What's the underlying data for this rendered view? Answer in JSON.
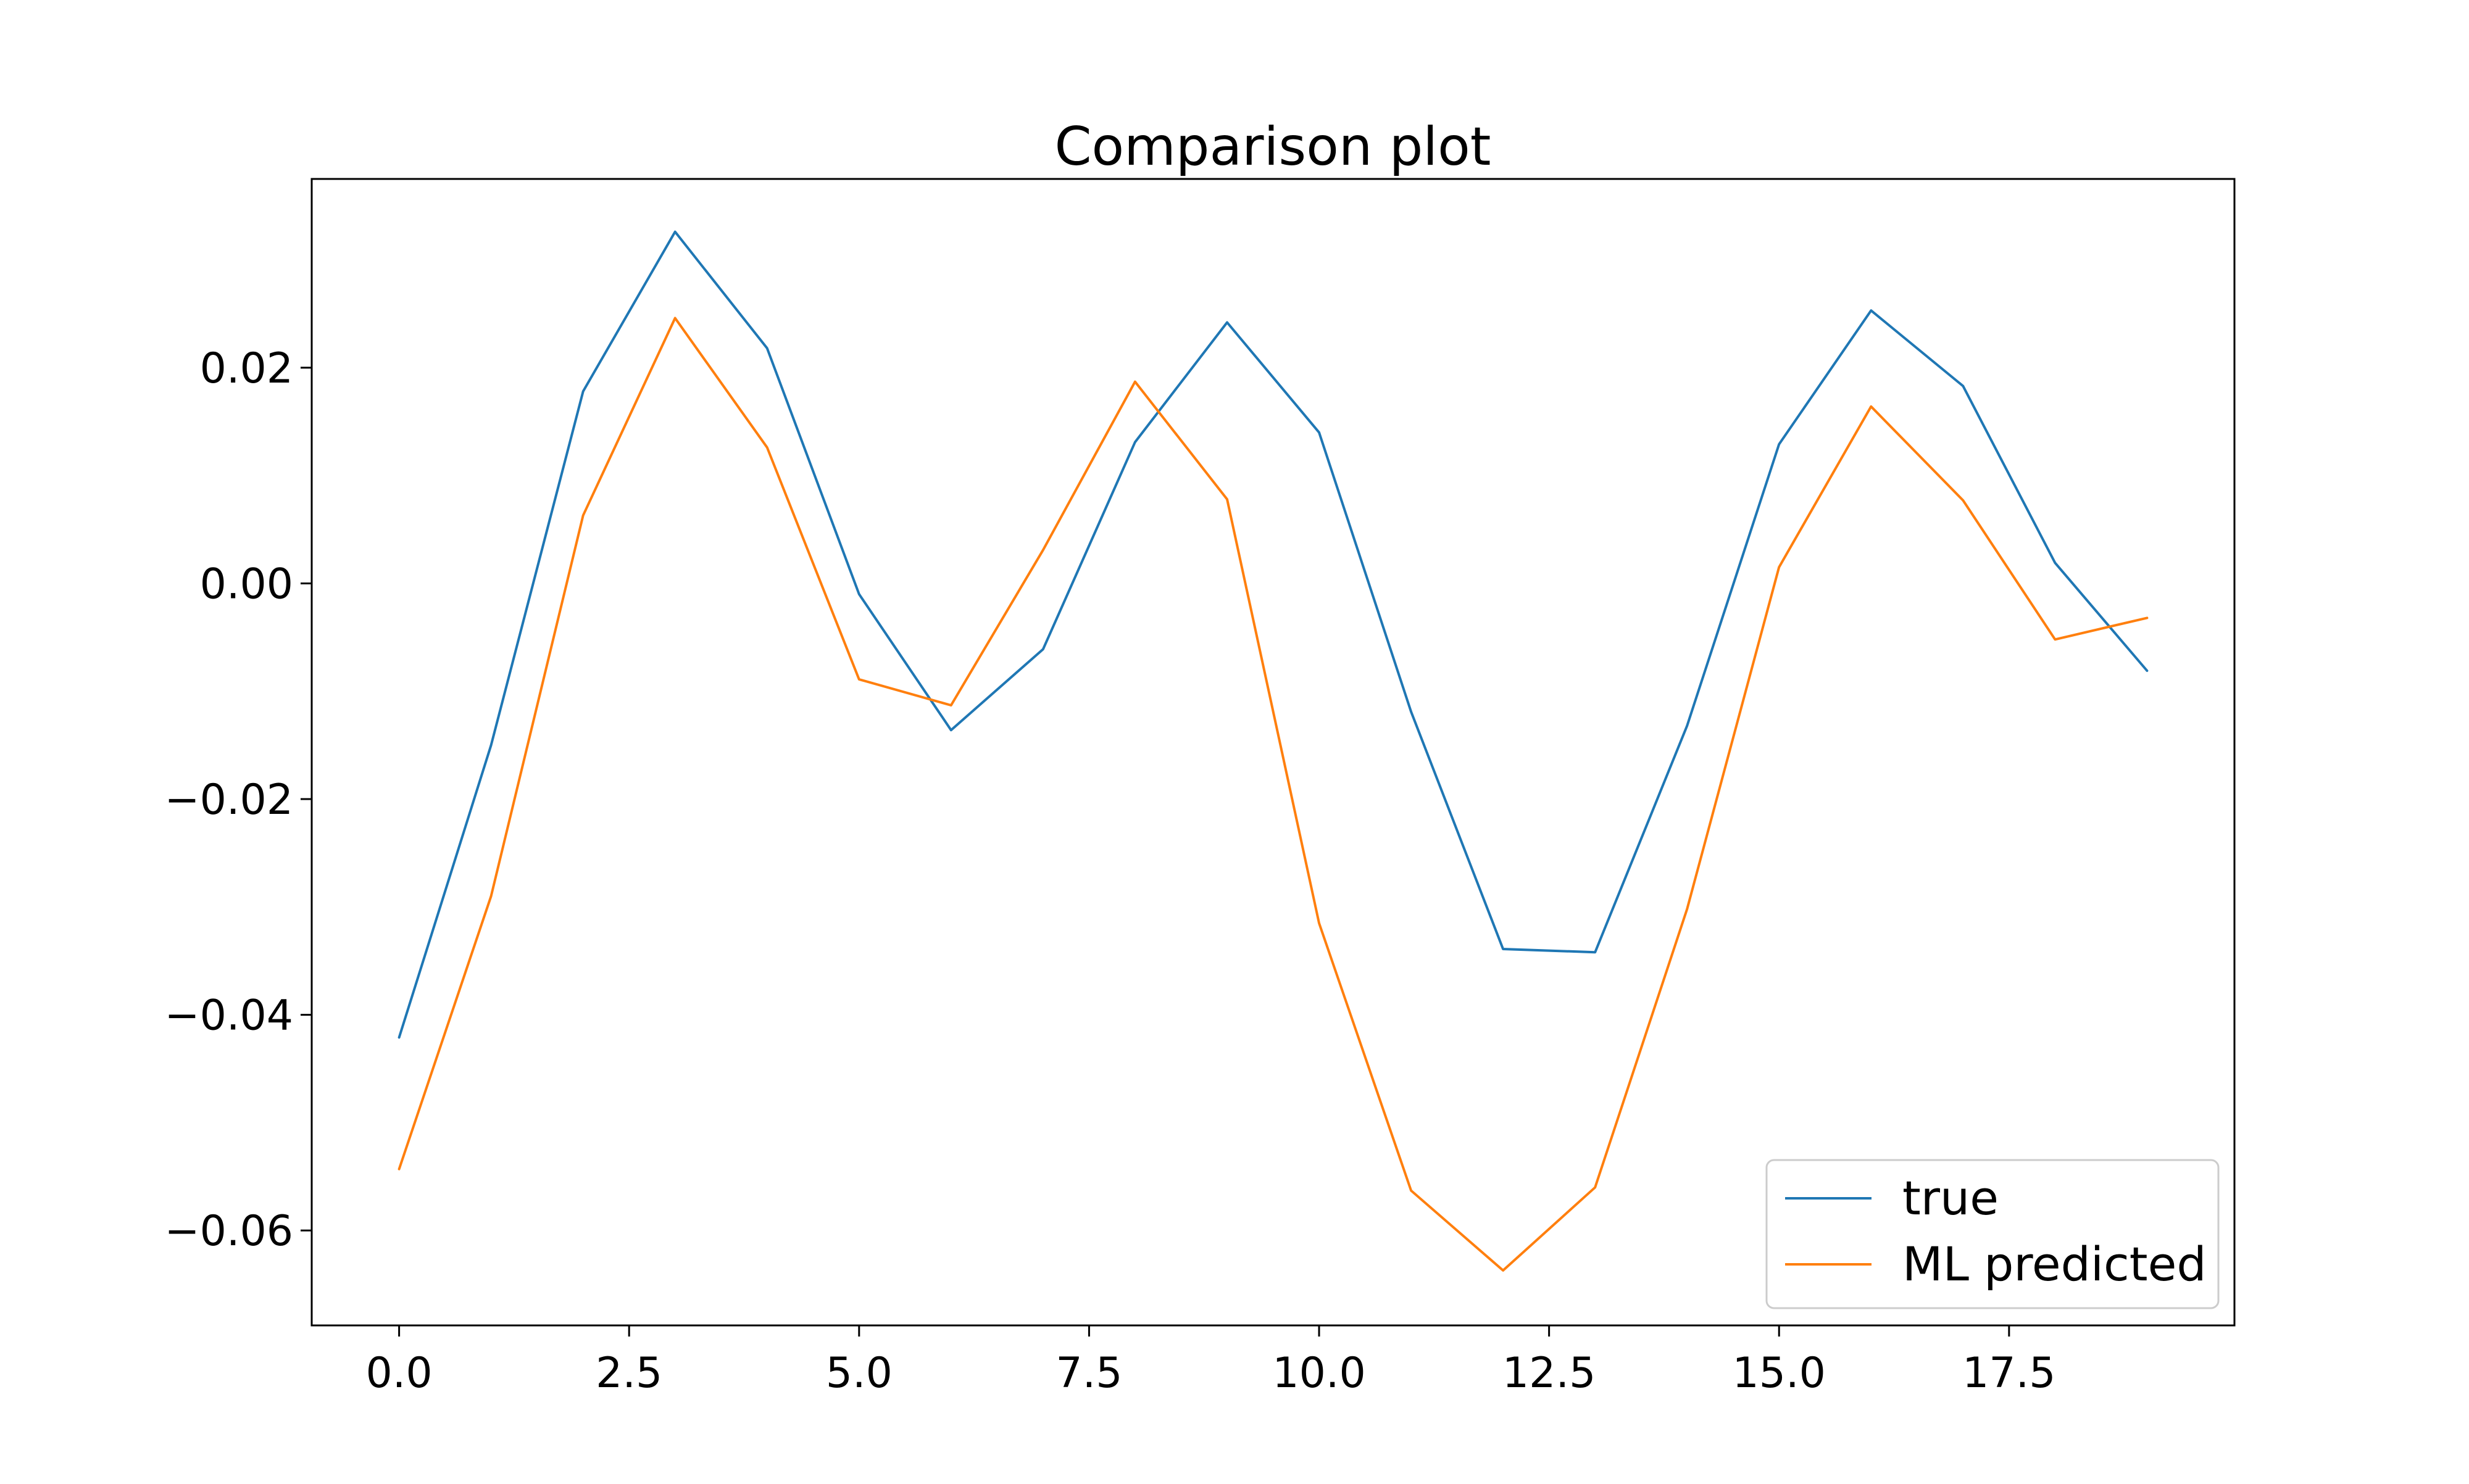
{
  "chart_data": {
    "type": "line",
    "title": "Comparison plot",
    "xlabel": "",
    "ylabel": "",
    "x": [
      0,
      1,
      2,
      3,
      4,
      5,
      6,
      7,
      8,
      9,
      10,
      11,
      12,
      13,
      14,
      15,
      16,
      17,
      18,
      19
    ],
    "series": [
      {
        "name": "true",
        "color": "#1f77b4",
        "values": [
          -0.0421,
          -0.015,
          0.0178,
          0.0326,
          0.0218,
          -0.001,
          -0.0136,
          -0.0061,
          0.0131,
          0.0242,
          0.014,
          -0.0119,
          -0.0339,
          -0.0342,
          -0.0132,
          0.0129,
          0.0253,
          0.0183,
          0.0019,
          -0.0081
        ]
      },
      {
        "name": "ML predicted",
        "color": "#ff7f0e",
        "values": [
          -0.0543,
          -0.029,
          0.0063,
          0.0246,
          0.0126,
          -0.0089,
          -0.0113,
          0.0031,
          0.0187,
          0.0078,
          -0.0315,
          -0.0563,
          -0.0637,
          -0.056,
          -0.0302,
          0.0015,
          0.0164,
          0.0077,
          -0.0052,
          -0.0032
        ]
      }
    ],
    "xlim": [
      -0.95,
      19.95
    ],
    "ylim": [
      -0.0688,
      0.0375
    ],
    "xticks": [
      0.0,
      2.5,
      5.0,
      7.5,
      10.0,
      12.5,
      15.0,
      17.5
    ],
    "xtick_labels": [
      "0.0",
      "2.5",
      "5.0",
      "7.5",
      "10.0",
      "12.5",
      "15.0",
      "17.5"
    ],
    "yticks": [
      -0.06,
      -0.04,
      -0.02,
      0.0,
      0.02
    ],
    "ytick_labels": [
      "−0.06",
      "−0.04",
      "−0.02",
      "0.00",
      "0.02"
    ],
    "grid": false,
    "legend_position": "lower right"
  }
}
